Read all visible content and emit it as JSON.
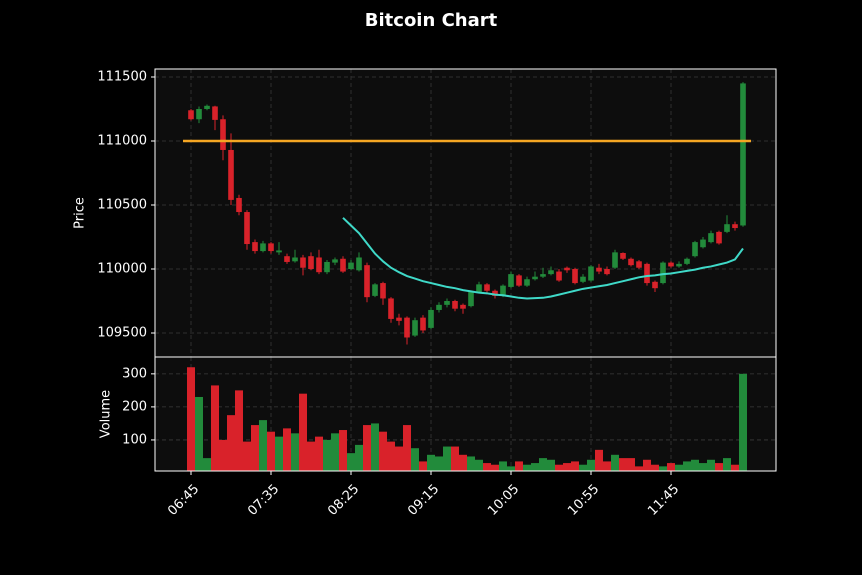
{
  "chart_data": {
    "type": "candlestick",
    "title": "Bitcoin Chart",
    "ylabel": "Price",
    "ylim": [
      109312.5,
      111562.5
    ],
    "yticks": [
      109500,
      110000,
      110500,
      111000,
      111500
    ],
    "xlim": [
      -4.5,
      73.125
    ],
    "xticks": [
      {
        "value": 0,
        "label": "06:45"
      },
      {
        "value": 10,
        "label": "07:35"
      },
      {
        "value": 20,
        "label": "08:25"
      },
      {
        "value": 30,
        "label": "09:15"
      },
      {
        "value": 40,
        "label": "10:05"
      },
      {
        "value": 50,
        "label": "10:55"
      },
      {
        "value": 60,
        "label": "11:45"
      }
    ],
    "grid": true,
    "up_color": "#228b3b",
    "down_color": "#d9222a",
    "open": [
      111240,
      111170,
      111250,
      111270,
      111170,
      110930,
      110555,
      110445,
      110210,
      110140,
      110200,
      110130,
      110100,
      110060,
      110090,
      110100,
      110090,
      109975,
      110050,
      110080,
      110000,
      109990,
      110030,
      109790,
      109890,
      109770,
      109620,
      109620,
      109480,
      109620,
      109540,
      109680,
      109720,
      109750,
      109720,
      109710,
      109820,
      109880,
      109830,
      109790,
      109860,
      109950,
      109870,
      109920,
      109940,
      109960,
      109980,
      110010,
      110000,
      109900,
      109910,
      110010,
      110000,
      110010,
      110125,
      110080,
      110060,
      110040,
      109900,
      109890,
      110050,
      110020,
      110040,
      110100,
      110170,
      110210,
      110290,
      110290,
      110350,
      110340
    ],
    "high": [
      111250,
      111270,
      111285,
      111275,
      111200,
      111060,
      110580,
      110460,
      110230,
      110220,
      110210,
      110210,
      110120,
      110150,
      110110,
      110130,
      110150,
      110070,
      110090,
      110100,
      110070,
      110130,
      110050,
      109890,
      109900,
      109780,
      109650,
      109630,
      109620,
      109640,
      109700,
      109740,
      109770,
      109760,
      109730,
      109830,
      109900,
      109890,
      109840,
      109880,
      109980,
      109960,
      109940,
      109980,
      110010,
      110020,
      110000,
      110020,
      110010,
      109960,
      110030,
      110040,
      110020,
      110150,
      110130,
      110090,
      110070,
      110050,
      109910,
      110060,
      110060,
      110060,
      110090,
      110220,
      110250,
      110300,
      110300,
      110420,
      110370,
      111460
    ],
    "low": [
      111160,
      111140,
      111240,
      111085,
      110850,
      110500,
      110420,
      110150,
      110120,
      110130,
      110120,
      110110,
      110040,
      110050,
      109950,
      109990,
      109960,
      109960,
      110030,
      109970,
      109990,
      109980,
      109740,
      109780,
      109720,
      109580,
      109560,
      109410,
      109470,
      109500,
      109530,
      109660,
      109700,
      109670,
      109650,
      109700,
      109810,
      109810,
      109770,
      109780,
      109850,
      109860,
      109860,
      109910,
      109930,
      109950,
      109900,
      109970,
      109880,
      109890,
      109900,
      109960,
      109950,
      110000,
      110070,
      110020,
      110000,
      109870,
      109820,
      109880,
      110010,
      110010,
      110030,
      110090,
      110160,
      110200,
      110190,
      110280,
      110300,
      110330
    ],
    "close": [
      111170,
      111250,
      111275,
      111165,
      110930,
      110540,
      110445,
      110195,
      110140,
      110200,
      110140,
      110145,
      110055,
      110090,
      110010,
      110000,
      109975,
      110055,
      110075,
      109980,
      110050,
      110090,
      109780,
      109880,
      109770,
      109610,
      109595,
      109465,
      109600,
      109520,
      109680,
      109720,
      109750,
      109690,
      109690,
      109820,
      109880,
      109830,
      109790,
      109870,
      109960,
      109870,
      109920,
      109940,
      109960,
      109990,
      109910,
      109990,
      109890,
      109940,
      110020,
      109980,
      109960,
      110130,
      110080,
      110030,
      110010,
      109890,
      109850,
      110050,
      110020,
      110040,
      110080,
      110210,
      110230,
      110280,
      110200,
      110350,
      110320,
      111450
    ],
    "ma": {
      "color": "#3fd9c8",
      "values": [
        null,
        null,
        null,
        null,
        null,
        null,
        null,
        null,
        null,
        null,
        null,
        null,
        null,
        null,
        null,
        null,
        null,
        null,
        null,
        110400,
        110340,
        110280,
        110200,
        110120,
        110060,
        110010,
        109975,
        109945,
        109925,
        109905,
        109890,
        109875,
        109860,
        109850,
        109835,
        109825,
        109815,
        109810,
        109800,
        109795,
        109785,
        109775,
        109770,
        109772,
        109775,
        109785,
        109800,
        109815,
        109830,
        109845,
        109855,
        109865,
        109875,
        109890,
        109905,
        109920,
        109935,
        109945,
        109950,
        109960,
        109965,
        109975,
        109985,
        109995,
        110010,
        110020,
        110035,
        110050,
        110075,
        110160
      ]
    },
    "hline": {
      "value": 111000,
      "color": "#f5a623"
    },
    "volume": {
      "ylabel": "Volume",
      "ylim": [
        6,
        351
      ],
      "yticks": [
        100,
        200,
        300
      ],
      "values": [
        320,
        230,
        45,
        265,
        100,
        175,
        250,
        95,
        145,
        160,
        125,
        110,
        135,
        120,
        240,
        95,
        110,
        100,
        120,
        130,
        60,
        85,
        145,
        150,
        125,
        95,
        80,
        145,
        75,
        35,
        55,
        50,
        80,
        80,
        55,
        50,
        40,
        30,
        25,
        35,
        20,
        35,
        25,
        30,
        45,
        40,
        25,
        30,
        35,
        25,
        40,
        70,
        35,
        55,
        45,
        45,
        20,
        40,
        25,
        20,
        30,
        25,
        35,
        40,
        30,
        40,
        30,
        45,
        25,
        300
      ]
    }
  }
}
